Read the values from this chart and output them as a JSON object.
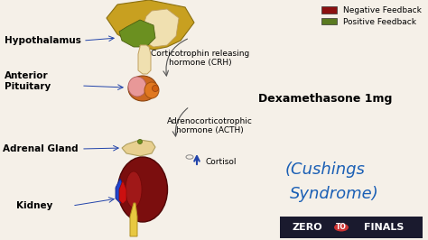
{
  "bg_color": "#f5f0e8",
  "hypothalamus_label": "Hypothalamus",
  "anterior_pituitary_label": "Anterior\nPituitary",
  "adrenal_gland_label": "Adrenal Gland",
  "kidney_label": "Kidney",
  "crh_label": "Corticotrophin releasing\nhormone (CRH)",
  "acth_label": "Adrenocorticotrophic\nhormone (ACTH)",
  "cortisol_label": "Cortisol",
  "dex_label": "Dexamethasone 1mg",
  "cushings_line1": "(Cushings",
  "cushings_line2": "Syndrome)",
  "neg_feedback_label": "Negative Feedback",
  "pos_feedback_label": "Positive Feedback",
  "neg_feedback_color": "#8B1010",
  "pos_feedback_color": "#5A7A20",
  "arrow_color": "#2244AA",
  "cushings_color": "#1a5fb5",
  "logo_bg": "#1a1a2e",
  "logo_text_color": "#ffffff",
  "label_font_size": 7.5,
  "small_font_size": 6.5,
  "dex_font_size": 9
}
